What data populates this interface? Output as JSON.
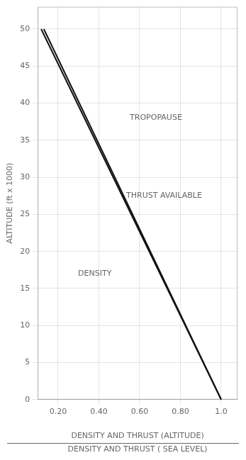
{
  "chart_data": {
    "type": "line",
    "ylabel": "ALTITUDE (ft x 1000)",
    "xlabel": [
      "DENSITY AND THRUST (ALTITUDE)",
      "DENSITY AND THRUST ( SEA LEVEL)"
    ],
    "series": [
      {
        "x": [
          0.117,
          1.0
        ],
        "values": [
          50,
          0
        ],
        "color": "#111111"
      },
      {
        "x": [
          0.13,
          1.0
        ],
        "values": [
          50,
          0
        ],
        "color": "#111111"
      }
    ],
    "annotations": [
      {
        "text": "TROPOPAUSE",
        "x": 0.68,
        "y": 37.5
      },
      {
        "text": "THRUST AVAILABLE",
        "x": 0.72,
        "y": 27.0
      },
      {
        "text": "DENSITY",
        "x": 0.38,
        "y": 16.5
      }
    ],
    "xlim": [
      0.1,
      1.08
    ],
    "xticks": [
      {
        "value": 0.2,
        "label": "0.20"
      },
      {
        "value": 0.4,
        "label": "0.40"
      },
      {
        "value": 0.6,
        "label": "0.60"
      },
      {
        "value": 0.8,
        "label": "0.80"
      },
      {
        "value": 1.0,
        "label": "1.0"
      }
    ],
    "ylim": [
      0,
      53
    ],
    "yticks": [
      0,
      5,
      10,
      15,
      20,
      25,
      30,
      35,
      40,
      45,
      50
    ],
    "grid": true
  }
}
